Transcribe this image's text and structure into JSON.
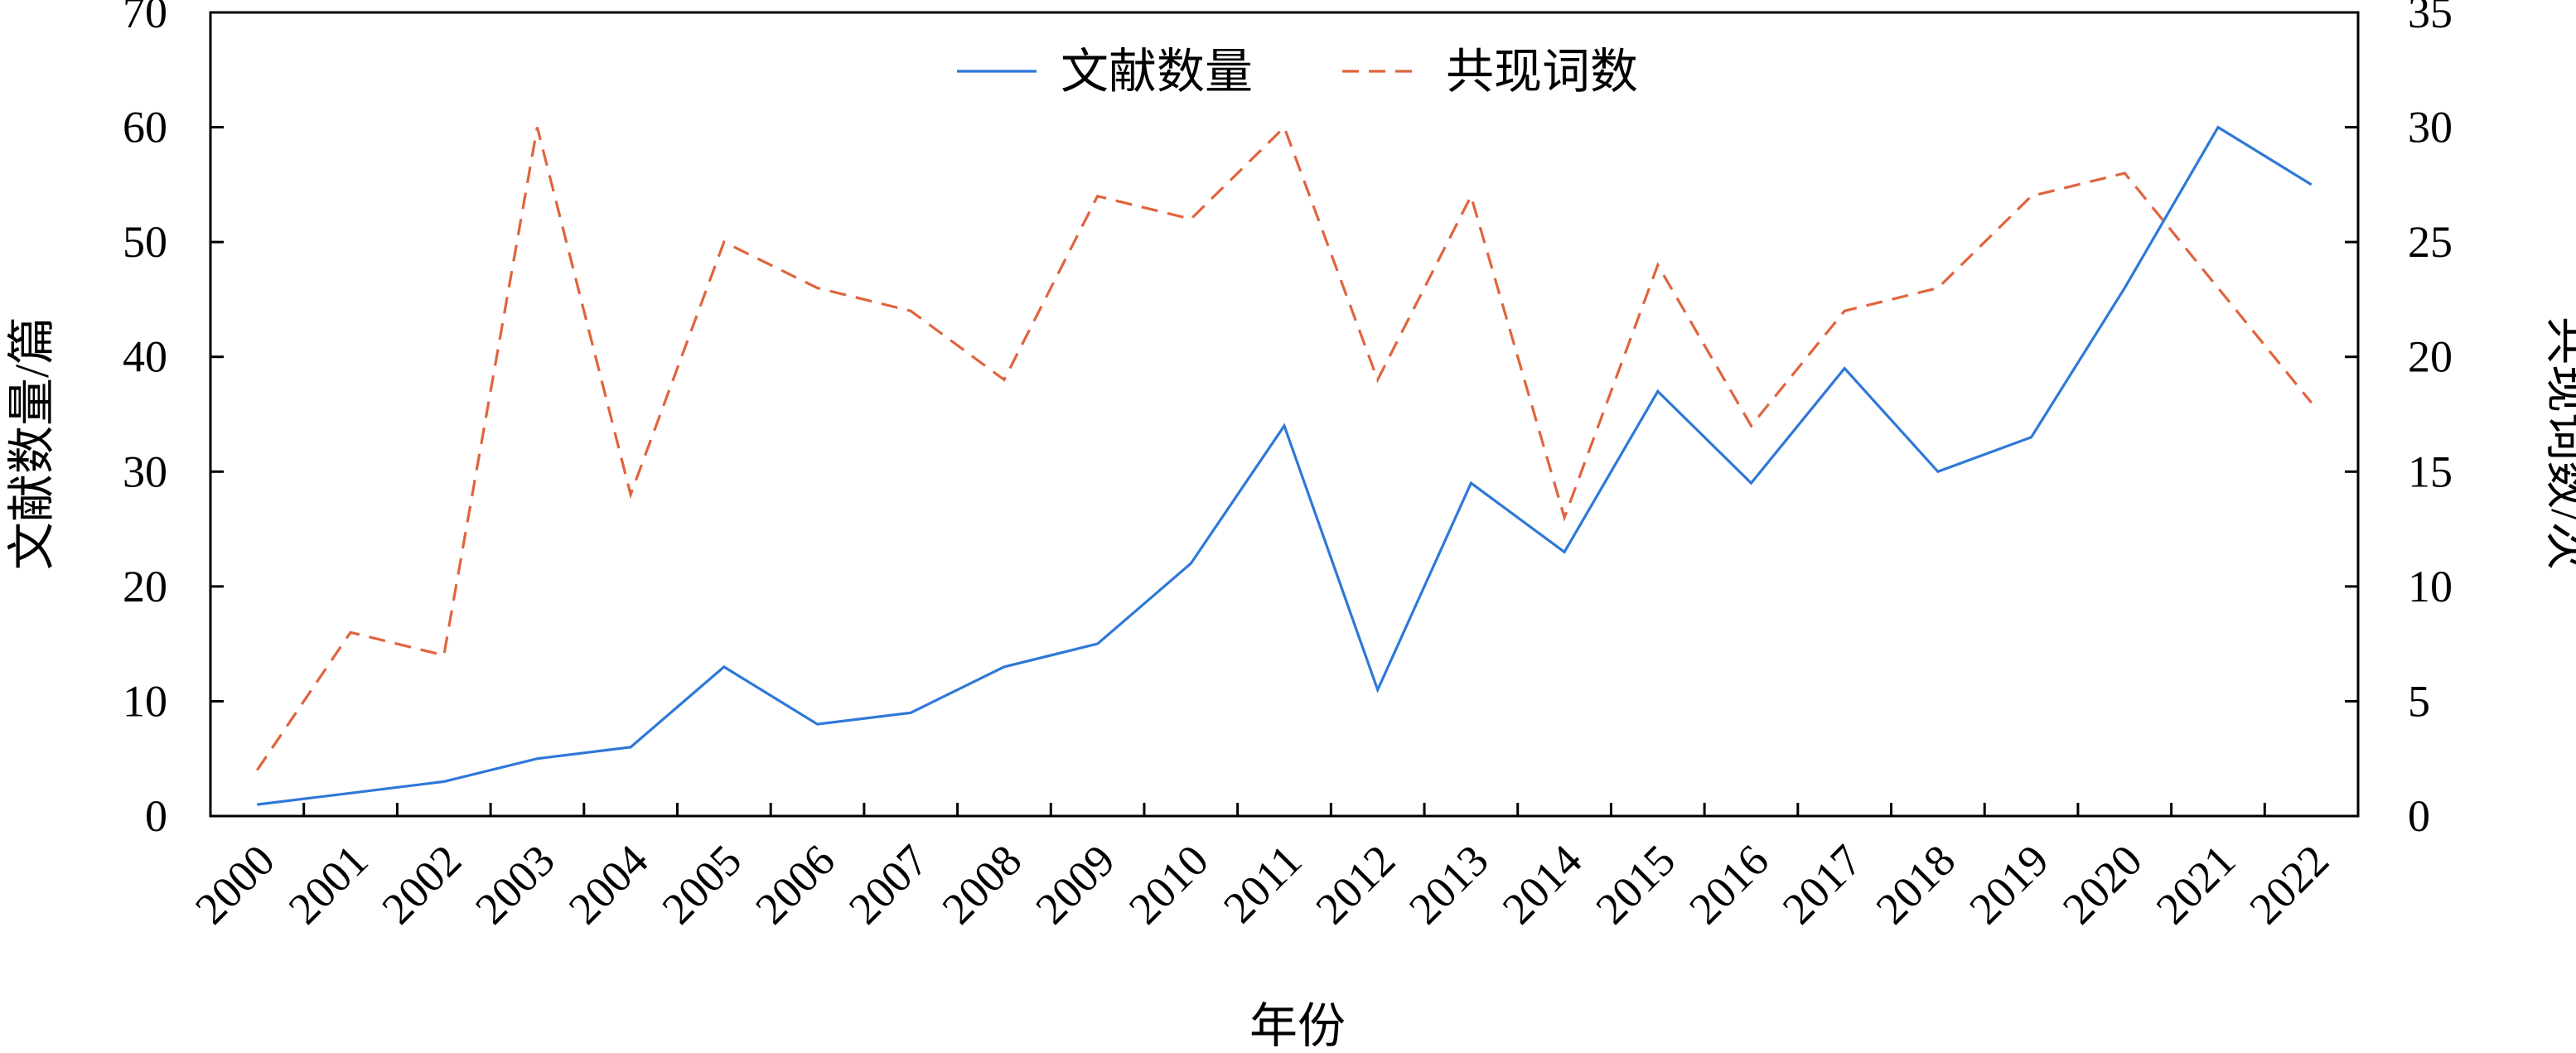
{
  "chart_data": {
    "type": "line",
    "title": "",
    "xlabel": "年份",
    "ylabel_left": "文献数量/篇",
    "ylabel_right": "共现词数/次",
    "ylim_left": [
      0,
      70
    ],
    "ylim_right": [
      0,
      35
    ],
    "yticks_left": [
      "0",
      "10",
      "20",
      "30",
      "40",
      "50",
      "60",
      "70"
    ],
    "yticks_right": [
      "0",
      "5",
      "10",
      "15",
      "20",
      "25",
      "30",
      "35"
    ],
    "categories": [
      "2000",
      "2001",
      "2002",
      "2003",
      "2004",
      "2005",
      "2006",
      "2007",
      "2008",
      "2009",
      "2010",
      "2011",
      "2012",
      "2013",
      "2014",
      "2015",
      "2016",
      "2017",
      "2018",
      "2019",
      "2020",
      "2021",
      "2022"
    ],
    "legend_position": "top-center",
    "grid": false,
    "series": [
      {
        "name": "文献数量",
        "axis": "left",
        "style": "solid",
        "color": "#2e78d8",
        "values": [
          1,
          2,
          3,
          5,
          6,
          13,
          8,
          9,
          13,
          15,
          22,
          34,
          11,
          29,
          23,
          37,
          29,
          39,
          30,
          33,
          46,
          60,
          55
        ]
      },
      {
        "name": "共现词数",
        "axis": "right",
        "style": "dashed",
        "color": "#e0643c",
        "values": [
          2,
          8,
          7,
          30,
          14,
          25,
          23,
          22,
          19,
          27,
          26,
          30,
          19,
          27,
          13,
          24,
          17,
          22,
          23,
          27,
          28,
          23,
          18
        ]
      }
    ]
  }
}
